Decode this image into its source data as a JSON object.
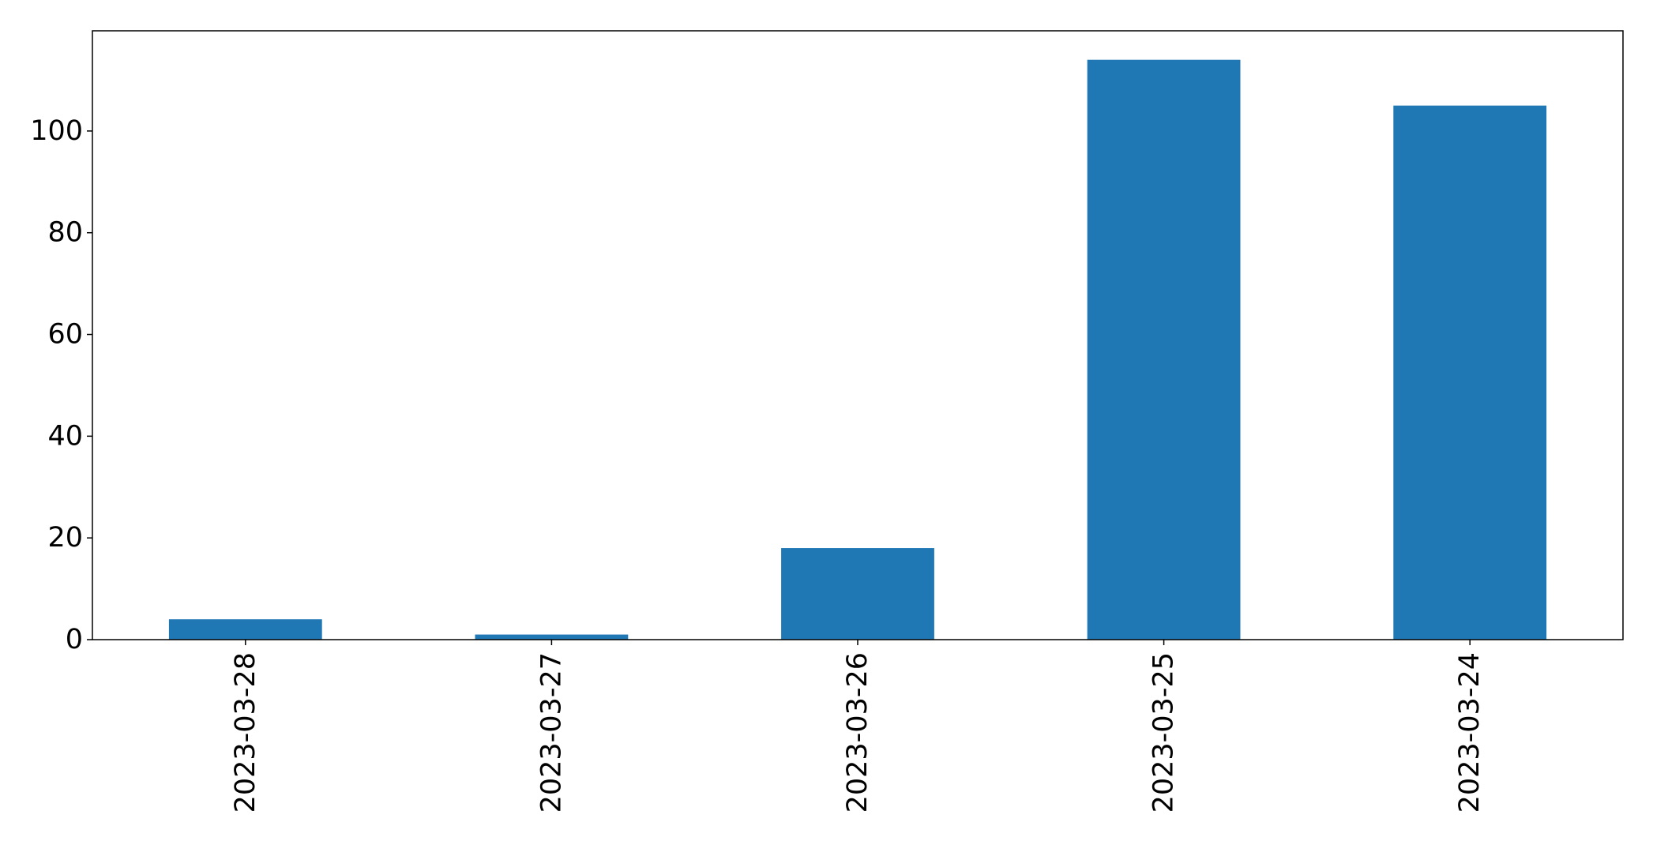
{
  "chart_data": {
    "type": "bar",
    "title": "",
    "xlabel": "",
    "ylabel": "",
    "categories": [
      "2023-03-28",
      "2023-03-27",
      "2023-03-26",
      "2023-03-25",
      "2023-03-24"
    ],
    "values": [
      4,
      1,
      18,
      114,
      105
    ],
    "ylim": [
      0,
      119.7
    ],
    "yticks": [
      0,
      20,
      40,
      60,
      80,
      100
    ],
    "ytick_labels": [
      "0",
      "20",
      "40",
      "60",
      "80",
      "100"
    ],
    "grid": false,
    "legend": false,
    "x_tick_rotation": "vertical",
    "colors": {
      "bar": "#1f77b4",
      "axes": "#000000",
      "background": "#ffffff"
    }
  }
}
